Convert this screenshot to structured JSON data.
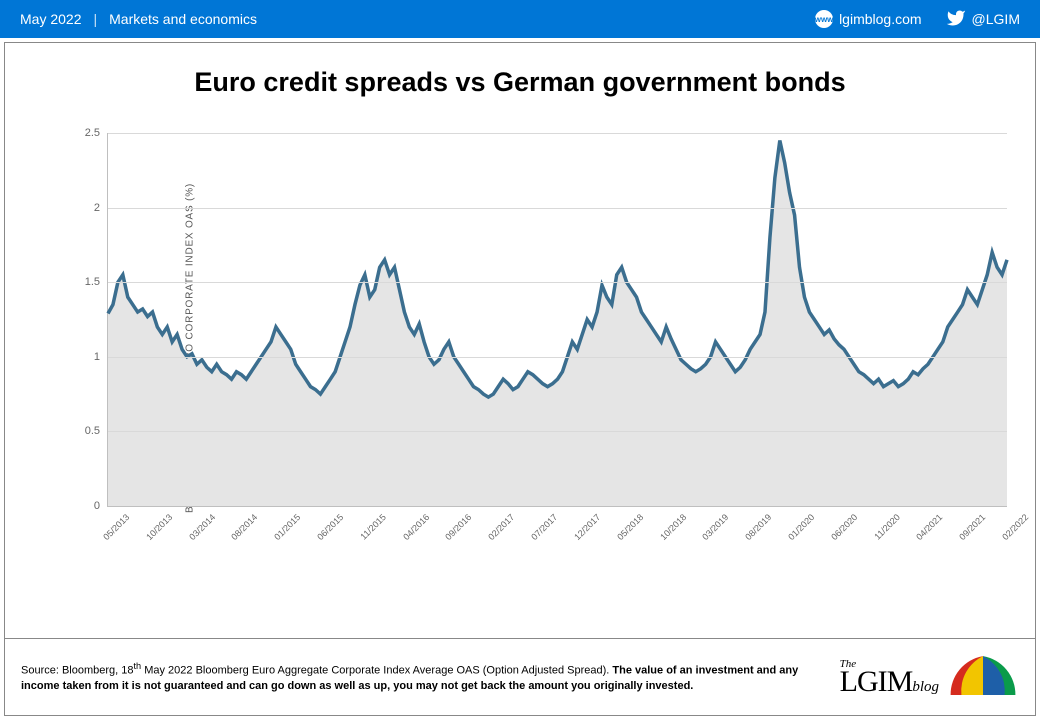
{
  "header": {
    "date": "May 2022",
    "category": "Markets and economics",
    "blog_url": "lgimblog.com",
    "twitter_handle": "@LGIM",
    "background_color": "#0076d6",
    "text_color": "#ffffff"
  },
  "chart": {
    "type": "area",
    "title": "Euro credit spreads vs German government bonds",
    "title_fontsize": 27,
    "title_color": "#000000",
    "y_axis_label": "BLOOMBERG BARCLAYS EURO CORPORATE INDEX OAS (%)",
    "y_axis_label_fontsize": 10,
    "ylim": [
      0,
      2.5
    ],
    "ytick_step": 0.5,
    "y_ticks": [
      0,
      0.5,
      1,
      1.5,
      2,
      2.5
    ],
    "x_ticks": [
      "05/2013",
      "10/2013",
      "03/2014",
      "08/2014",
      "01/2015",
      "06/2015",
      "11/2015",
      "04/2016",
      "09/2016",
      "02/2017",
      "07/2017",
      "12/2017",
      "05/2018",
      "10/2018",
      "03/2019",
      "08/2019",
      "01/2020",
      "06/2020",
      "11/2020",
      "04/2021",
      "09/2021",
      "02/2022"
    ],
    "line_color": "#3b6e8f",
    "line_width": 1.3,
    "fill_color": "#e5e5e5",
    "grid_color": "#d9d9d9",
    "axis_color": "#bfbfbf",
    "background_color": "#ffffff",
    "tick_label_color": "#666666",
    "tick_label_fontsize": 10,
    "series": [
      1.29,
      1.35,
      1.5,
      1.55,
      1.4,
      1.35,
      1.3,
      1.32,
      1.27,
      1.3,
      1.2,
      1.15,
      1.2,
      1.1,
      1.15,
      1.05,
      1.0,
      1.02,
      0.95,
      0.98,
      0.93,
      0.9,
      0.95,
      0.9,
      0.88,
      0.85,
      0.9,
      0.88,
      0.85,
      0.9,
      0.95,
      1.0,
      1.05,
      1.1,
      1.2,
      1.15,
      1.1,
      1.05,
      0.95,
      0.9,
      0.85,
      0.8,
      0.78,
      0.75,
      0.8,
      0.85,
      0.9,
      1.0,
      1.1,
      1.2,
      1.35,
      1.48,
      1.55,
      1.4,
      1.45,
      1.6,
      1.65,
      1.55,
      1.6,
      1.45,
      1.3,
      1.2,
      1.15,
      1.22,
      1.1,
      1.0,
      0.95,
      0.98,
      1.05,
      1.1,
      1.0,
      0.95,
      0.9,
      0.85,
      0.8,
      0.78,
      0.75,
      0.73,
      0.75,
      0.8,
      0.85,
      0.82,
      0.78,
      0.8,
      0.85,
      0.9,
      0.88,
      0.85,
      0.82,
      0.8,
      0.82,
      0.85,
      0.9,
      1.0,
      1.1,
      1.05,
      1.15,
      1.25,
      1.2,
      1.3,
      1.48,
      1.4,
      1.35,
      1.55,
      1.6,
      1.5,
      1.45,
      1.4,
      1.3,
      1.25,
      1.2,
      1.15,
      1.1,
      1.2,
      1.12,
      1.05,
      0.98,
      0.95,
      0.92,
      0.9,
      0.92,
      0.95,
      1.0,
      1.1,
      1.05,
      1.0,
      0.95,
      0.9,
      0.93,
      0.98,
      1.05,
      1.1,
      1.15,
      1.3,
      1.8,
      2.2,
      2.45,
      2.3,
      2.1,
      1.95,
      1.6,
      1.4,
      1.3,
      1.25,
      1.2,
      1.15,
      1.18,
      1.12,
      1.08,
      1.05,
      1.0,
      0.95,
      0.9,
      0.88,
      0.85,
      0.82,
      0.85,
      0.8,
      0.82,
      0.84,
      0.8,
      0.82,
      0.85,
      0.9,
      0.88,
      0.92,
      0.95,
      1.0,
      1.05,
      1.1,
      1.2,
      1.25,
      1.3,
      1.35,
      1.45,
      1.4,
      1.35,
      1.45,
      1.55,
      1.7,
      1.6,
      1.55,
      1.65
    ]
  },
  "footer": {
    "source_prefix": "Source: Bloomberg, 18",
    "source_super": "th",
    "source_suffix": " May 2022 Bloomberg Euro Aggregate Corporate Index Average OAS (Option Adjusted Spread). ",
    "disclaimer_bold": "The value of an investment and any income taken from it is not guaranteed and can go down as well as up, you may not get back the amount you originally invested.",
    "logo_the": "The",
    "logo_main": "LGIM",
    "logo_blog": "blog",
    "umbrella_colors": {
      "panel1": "#d52b1e",
      "panel2": "#f2c500",
      "panel3": "#0a9b4a",
      "panel4": "#1e5fa8"
    }
  }
}
